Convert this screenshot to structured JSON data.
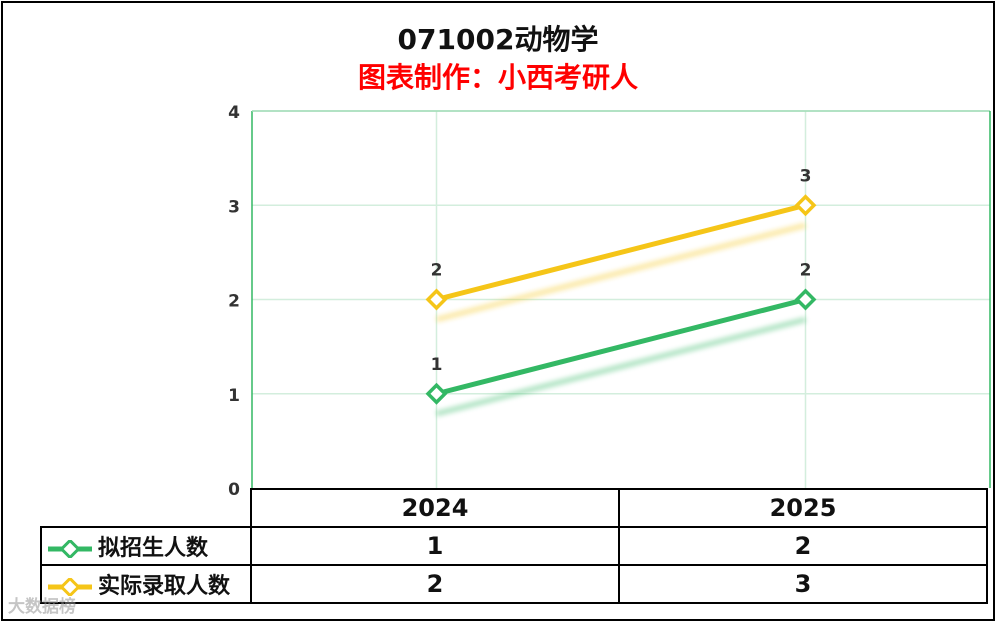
{
  "chart_data": {
    "type": "line",
    "title": "071002动物学",
    "subtitle": "图表制作：小西考研人",
    "categories": [
      "2024",
      "2025"
    ],
    "series": [
      {
        "name": "拟招生人数",
        "values": [
          1,
          2
        ],
        "color": "#33b864"
      },
      {
        "name": "实际录取人数",
        "values": [
          2,
          3
        ],
        "color": "#f5c518"
      }
    ],
    "ylim": [
      0,
      4
    ],
    "yticks": [
      "0",
      "1",
      "2",
      "3",
      "4"
    ],
    "grid": true,
    "legend": "data-table-below",
    "xlabel": "",
    "ylabel": ""
  },
  "watermark": "大数据榜"
}
